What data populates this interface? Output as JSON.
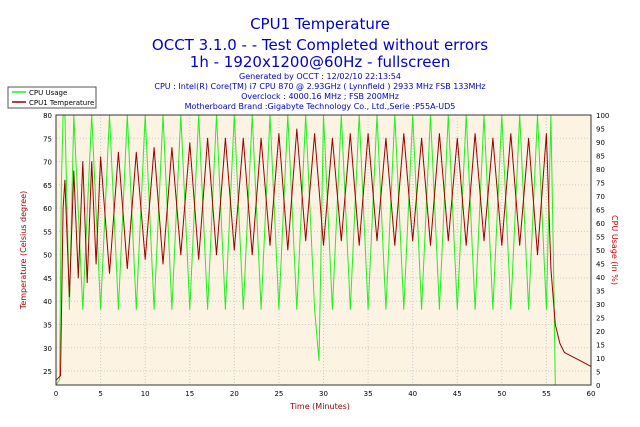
{
  "header": {
    "title": "CPU1 Temperature",
    "subtitle1": "OCCT 3.1.0 -   - Test Completed without errors",
    "subtitle2": "1h - 1920x1200@60Hz - fullscreen",
    "generated": "Generated by OCCT : 12/02/10 22:13:54",
    "cpu": "CPU : Intel(R) Core(TM) i7 CPU 870 @ 2.93GHz ( Lynnfield ) 2933 MHz FSB 133MHz",
    "overclock": "Overclock : 4000.16 MHz ; FSB 200MHz",
    "motherboard": "Motherboard Brand :Gigabyte Technology Co., Ltd.,Serie :P55A-UD5"
  },
  "colors": {
    "title": "#0000cc",
    "plot_background": "#fdf3e3",
    "cpu_usage_line": "#22ee22",
    "temperature_line": "#990000",
    "axis_label_temperature": "#990000",
    "axis_label_usage": "#cc0000"
  },
  "chart_data": {
    "type": "line",
    "xlabel": "Time (Minutes)",
    "ylabel": "Temperature (Celsius degree)",
    "y2label": "CPU Usage (in %)",
    "xlim": [
      0,
      60
    ],
    "ylim": [
      22,
      80
    ],
    "y2lim": [
      0,
      100
    ],
    "x_ticks": [
      0,
      5,
      10,
      15,
      20,
      25,
      30,
      35,
      40,
      45,
      50,
      55,
      60
    ],
    "y_ticks": [
      25,
      30,
      35,
      40,
      45,
      50,
      55,
      60,
      65,
      70,
      75,
      80
    ],
    "y2_ticks": [
      0,
      5,
      10,
      15,
      20,
      25,
      30,
      35,
      40,
      45,
      50,
      55,
      60,
      65,
      70,
      75,
      80,
      85,
      90,
      95,
      100
    ],
    "grid": true,
    "legend_position": "top-left",
    "series": [
      {
        "name": "CPU Usage",
        "axis": "right",
        "x": [
          0,
          0.4,
          0.6,
          0.8,
          1.0,
          1.5,
          2.0,
          3.0,
          4.0,
          5.0,
          6.0,
          7.0,
          8.0,
          9.0,
          10.0,
          11.0,
          12.0,
          13.0,
          14.0,
          15.0,
          16.0,
          17.0,
          18.0,
          19.0,
          20.0,
          21.0,
          22.0,
          23.0,
          24.0,
          25.0,
          26.0,
          27.0,
          28.0,
          29.0,
          29.5,
          30.0,
          31.0,
          32.0,
          33.0,
          34.0,
          35.0,
          36.0,
          37.0,
          38.0,
          39.0,
          40.0,
          41.0,
          42.0,
          43.0,
          44.0,
          45.0,
          46.0,
          47.0,
          48.0,
          49.0,
          50.0,
          51.0,
          52.0,
          53.0,
          54.0,
          55.0,
          55.5,
          55.8,
          56.0,
          57.0,
          58.0,
          59.0,
          60.0
        ],
        "values": [
          0,
          2,
          75,
          100,
          100,
          28,
          100,
          28,
          100,
          28,
          100,
          28,
          100,
          28,
          100,
          28,
          100,
          28,
          100,
          28,
          100,
          28,
          100,
          28,
          100,
          28,
          100,
          28,
          100,
          28,
          100,
          28,
          100,
          28,
          9,
          100,
          28,
          100,
          28,
          100,
          28,
          100,
          28,
          100,
          28,
          100,
          28,
          100,
          28,
          100,
          28,
          100,
          28,
          100,
          28,
          100,
          28,
          100,
          28,
          100,
          28,
          100,
          45,
          0,
          0,
          0,
          0,
          0
        ]
      },
      {
        "name": "CPU1 Temperature",
        "axis": "left",
        "x": [
          0,
          0.5,
          0.8,
          1.0,
          1.5,
          2.0,
          2.5,
          3.0,
          3.5,
          4.0,
          4.5,
          5.0,
          6.0,
          7.0,
          8.0,
          9.0,
          10.0,
          11.0,
          12.0,
          13.0,
          14.0,
          15.0,
          16.0,
          17.0,
          18.0,
          19.0,
          20.0,
          21.0,
          22.0,
          23.0,
          24.0,
          25.0,
          26.0,
          27.0,
          28.0,
          29.0,
          30.0,
          31.0,
          32.0,
          33.0,
          34.0,
          35.0,
          36.0,
          37.0,
          38.0,
          39.0,
          40.0,
          41.0,
          42.0,
          43.0,
          44.0,
          45.0,
          46.0,
          47.0,
          48.0,
          49.0,
          50.0,
          51.0,
          52.0,
          53.0,
          54.0,
          55.0,
          55.5,
          56.0,
          56.5,
          57.0,
          58.0,
          59.0,
          60.0
        ],
        "values": [
          23,
          24,
          60,
          66,
          41,
          68,
          45,
          70,
          44,
          70,
          48,
          71,
          46,
          72,
          47,
          72,
          49,
          73,
          48,
          73,
          50,
          74,
          49,
          75,
          50,
          75,
          51,
          75,
          50,
          75,
          52,
          76,
          51,
          77,
          53,
          76,
          52,
          75,
          53,
          76,
          52,
          76,
          53,
          75,
          52,
          76,
          53,
          75,
          52,
          76,
          53,
          75,
          52,
          76,
          53,
          75,
          52,
          76,
          52,
          75,
          50,
          76,
          47,
          35,
          31,
          29,
          28,
          27,
          26
        ]
      }
    ]
  }
}
